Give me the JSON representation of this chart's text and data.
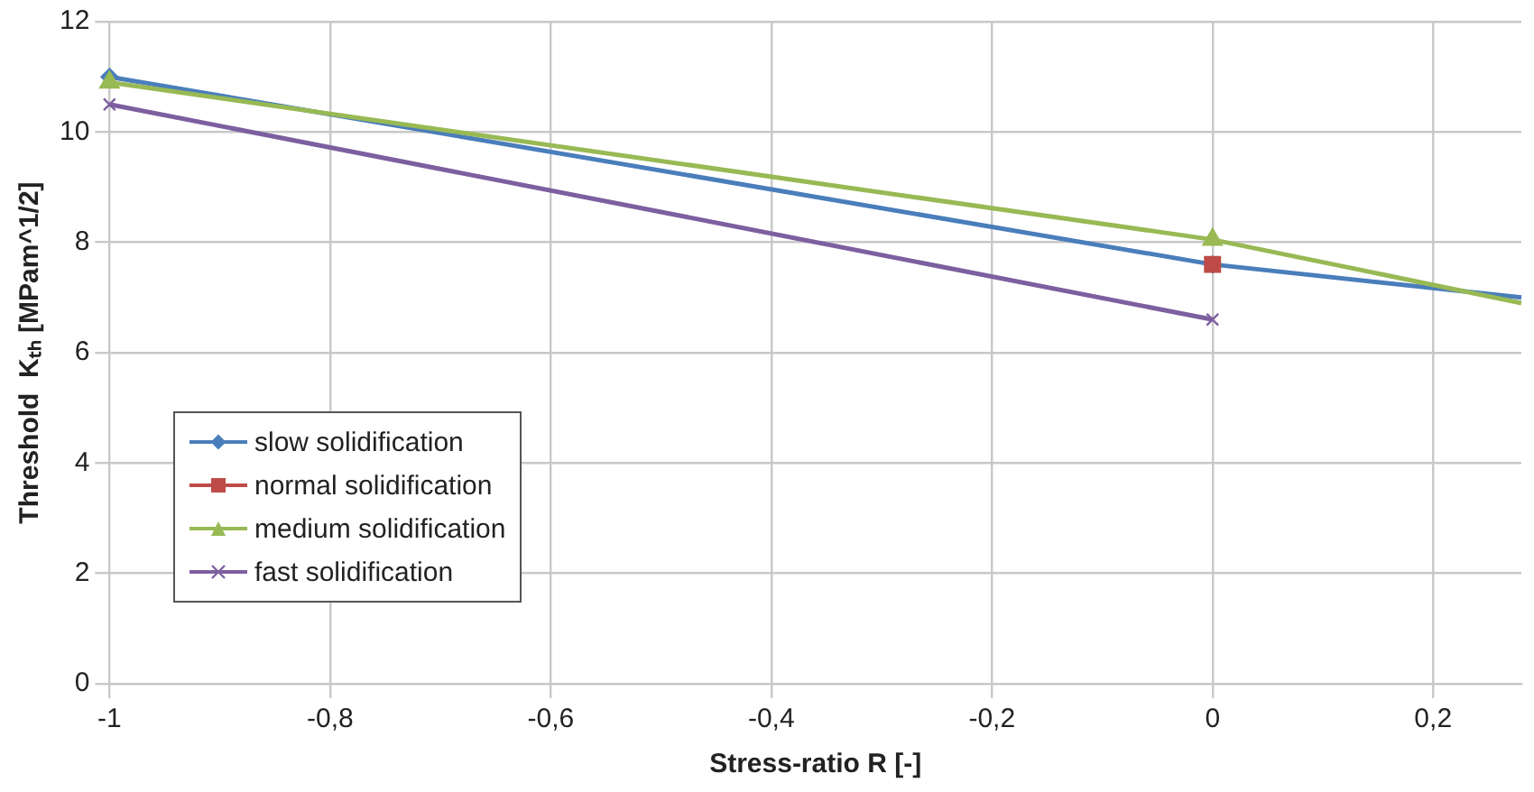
{
  "chart_data": {
    "type": "line",
    "xlabel": "Stress-ratio R [-]",
    "ylabel": "Threshold  Kₜₕ [MPam^1/2]",
    "xlim": [
      -1,
      0.28
    ],
    "xticks": [
      {
        "value": -1,
        "label": "-1"
      },
      {
        "value": -0.8,
        "label": "-0,8"
      },
      {
        "value": -0.6,
        "label": "-0,6"
      },
      {
        "value": -0.4,
        "label": "-0,4"
      },
      {
        "value": -0.2,
        "label": "-0,2"
      },
      {
        "value": 0,
        "label": "0"
      },
      {
        "value": 0.2,
        "label": "0,2"
      }
    ],
    "ylim": [
      0,
      12
    ],
    "yticks": [
      0,
      2,
      4,
      6,
      8,
      10,
      12
    ],
    "grid": true,
    "legend": "bottom left",
    "line_style": "solid",
    "series": [
      {
        "name": "slow solidification",
        "color": "#4a7ebb",
        "marker": "diamond",
        "x": [
          -1,
          0,
          0.28
        ],
        "values": [
          11.0,
          7.6,
          7.0
        ]
      },
      {
        "name": "normal solidification",
        "color": "#be4b48",
        "marker": "square",
        "x": [
          0
        ],
        "values": [
          7.6
        ]
      },
      {
        "name": "medium solidification",
        "color": "#98b954",
        "marker": "triangle",
        "x": [
          -1,
          0,
          0.28
        ],
        "values": [
          10.9,
          8.05,
          6.9
        ]
      },
      {
        "name": "fast solidification",
        "color": "#7d5fa0",
        "marker": "cross",
        "x": [
          -1,
          0
        ],
        "values": [
          10.5,
          6.6
        ]
      }
    ]
  }
}
